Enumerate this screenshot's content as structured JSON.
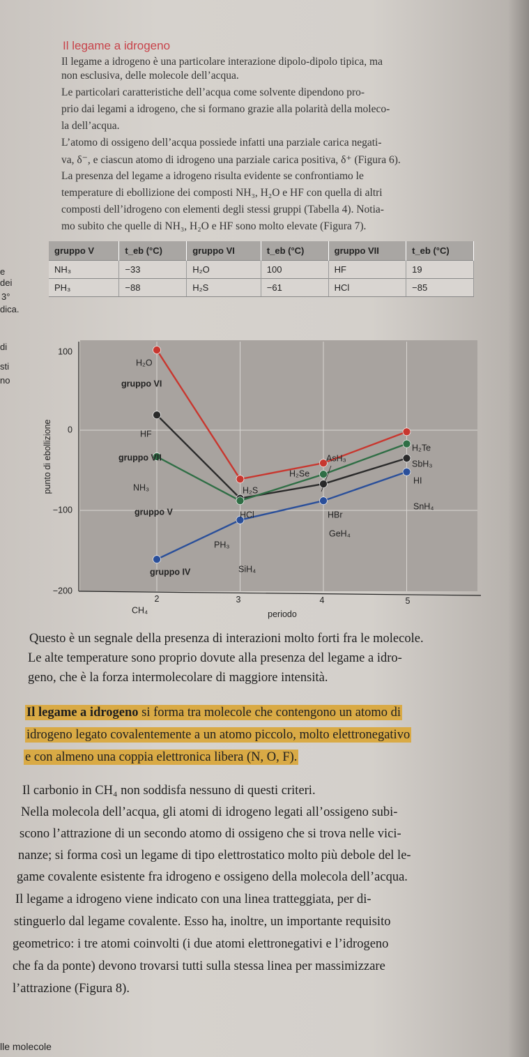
{
  "section_title": "Il legame a idrogeno",
  "intro_lines": [
    "Il legame a idrogeno è una particolare interazione dipolo-dipolo tipica, ma",
    "non esclusiva, delle molecole dell’acqua.",
    "     Le particolari caratteristiche dell’acqua come solvente dipendono pro-",
    "prio dai legami a idrogeno, che si formano grazie alla polarità della moleco-",
    "la dell’acqua.",
    "     L’atomo di ossigeno dell’acqua possiede infatti una parziale carica negati-",
    "va, δ⁻, e ciascun atomo di idrogeno una parziale carica positiva, δ⁺ (Figura 6).",
    "     La presenza del legame a idrogeno risulta evidente se confrontiamo le",
    "temperature di ebollizione dei composti NH₃, H₂O e HF con quella di altri",
    "composti dell’idrogeno con elementi degli stessi gruppi (Tabella 4). Notia-",
    "mo subito che quelle di NH₃, H₂O e HF sono molto elevate (Figura 7)."
  ],
  "margin_fragments": [
    "e",
    "dei",
    "3°",
    "dica.",
    "di",
    "sti",
    "no",
    "lle molecole"
  ],
  "table": {
    "headers": [
      "gruppo V",
      "t_eb (°C)",
      "gruppo VI",
      "t_eb (°C)",
      "gruppo VII",
      "t_eb (°C)"
    ],
    "rows": [
      [
        "NH₃",
        "−33",
        "H₂O",
        "100",
        "HF",
        "19"
      ],
      [
        "PH₃",
        "−88",
        "H₂S",
        "−61",
        "HCl",
        "−85"
      ]
    ]
  },
  "chart_data": {
    "type": "line",
    "xlabel": "periodo",
    "ylabel": "punto di ebollizione",
    "x": [
      2,
      3,
      4,
      5
    ],
    "xticks": [
      "2",
      "3",
      "4",
      "5"
    ],
    "yticks": [
      "100",
      "0",
      "−100",
      "−200"
    ],
    "ylim": [
      -200,
      100
    ],
    "grid": true,
    "series": [
      {
        "name": "gruppo VI",
        "color": "#c8372f",
        "labels": [
          "H₂O",
          "H₂S",
          "H₂Se",
          "H₂Te"
        ],
        "values": [
          100,
          -61,
          -41,
          -2
        ]
      },
      {
        "name": "gruppo VII",
        "color": "#2a2a2a",
        "labels": [
          "HF",
          "HCl",
          "HBr",
          "HI"
        ],
        "values": [
          19,
          -85,
          -67,
          -35
        ]
      },
      {
        "name": "gruppo V",
        "color": "#2f6e45",
        "labels": [
          "NH₃",
          "PH₃",
          "AsH₃",
          "SbH₃"
        ],
        "values": [
          -33,
          -88,
          -55,
          -17
        ]
      },
      {
        "name": "gruppo IV",
        "color": "#2a4f9a",
        "labels": [
          "CH₄",
          "SiH₄",
          "GeH₄",
          "SnH₄"
        ],
        "values": [
          -161,
          -112,
          -88,
          -52
        ]
      }
    ]
  },
  "body": {
    "p1": "Questo è un segnale della presenza di interazioni molto forti fra le molecole.",
    "p2a": "     Le alte temperature sono proprio dovute alla presenza del legame a idro-",
    "p2b": "geno, che è la forza intermolecolare di maggiore intensità.",
    "def_bold": "Il legame a idrogeno",
    "def_1": " si forma tra molecole che contengono un atomo di",
    "def_2": "idrogeno legato covalentemente a un atomo piccolo, molto elettronegativo",
    "def_3": "e con almeno una coppia elettronica libera (N, O, F).",
    "lines": [
      "Il carbonio in CH₄ non soddisfa nessuno di questi criteri.",
      "     Nella molecola dell’acqua, gli atomi di idrogeno legati all’ossigeno subi-",
      "scono l’attrazione di un secondo atomo di ossigeno che si trova nelle vici-",
      "nanze; si forma così un legame di tipo elettrostatico molto più debole del le-",
      "game covalente esistente fra idrogeno e ossigeno della molecola dell’acqua.",
      "     Il legame a idrogeno viene indicato con una linea tratteggiata, per di-",
      "stinguerlo dal legame covalente. Esso ha, inoltre, un importante requisito",
      "geometrico: i tre atomi coinvolti (i due atomi elettronegativi e l’idrogeno",
      "che fa da ponte) devono trovarsi tutti sulla stessa linea per massimizzare",
      "l’attrazione (Figura 8)."
    ]
  }
}
